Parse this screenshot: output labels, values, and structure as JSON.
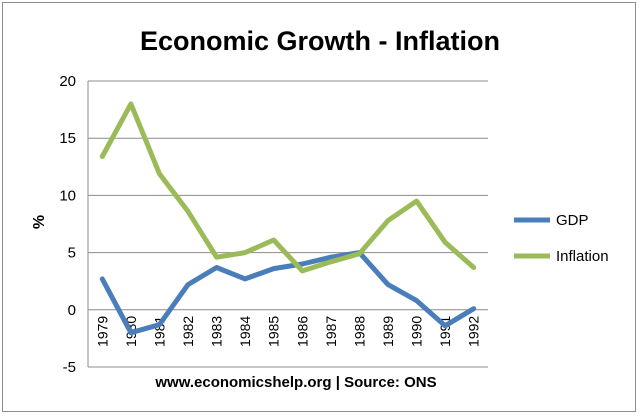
{
  "chart_data": {
    "type": "line",
    "title": "Economic Growth - Inflation",
    "ylabel": "%",
    "xlabel": "",
    "categories": [
      "1979",
      "1980",
      "1981",
      "1982",
      "1983",
      "1984",
      "1985",
      "1986",
      "1987",
      "1988",
      "1989",
      "1990",
      "1991",
      "1992"
    ],
    "ylim": [
      -5,
      20
    ],
    "yticks": [
      -5,
      0,
      5,
      10,
      15,
      20
    ],
    "grid": true,
    "legend_position": "right",
    "series": [
      {
        "name": "GDP",
        "color": "#4a7ebb",
        "values": [
          2.7,
          -2.0,
          -1.3,
          2.2,
          3.7,
          2.7,
          3.6,
          4.0,
          4.6,
          5.0,
          2.2,
          0.8,
          -1.4,
          0.1
        ]
      },
      {
        "name": "Inflation",
        "color": "#9bbb59",
        "values": [
          13.4,
          18.0,
          11.9,
          8.6,
          4.6,
          5.0,
          6.1,
          3.4,
          4.2,
          4.9,
          7.8,
          9.5,
          5.9,
          3.7
        ]
      }
    ],
    "source": "www.economicshelp.org | Source: ONS"
  }
}
